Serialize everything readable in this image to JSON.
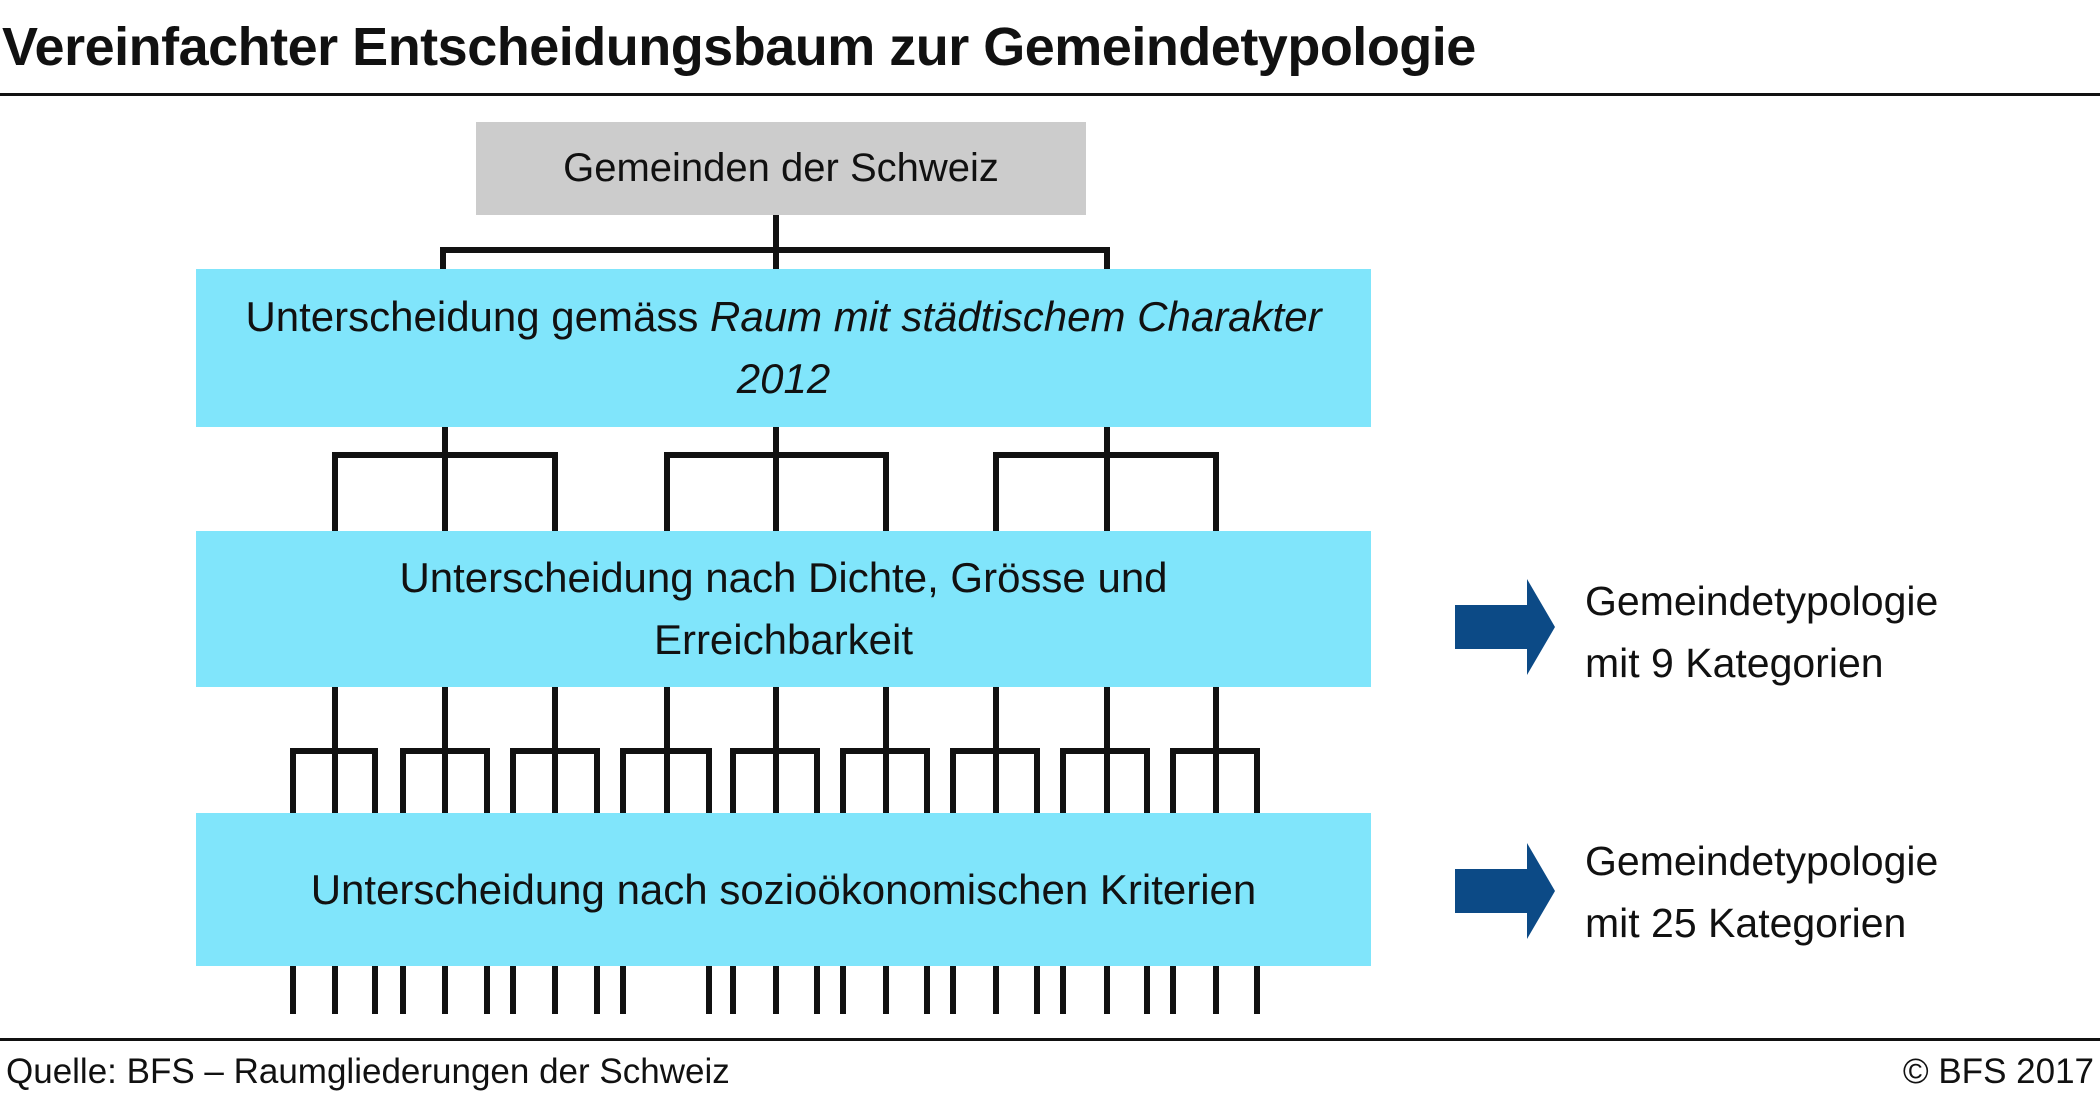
{
  "title": "Vereinfachter Entscheidungsbaum zur Gemeindetypologie",
  "root": "Gemeinden der Schweiz",
  "level1": {
    "text": "Unterscheidung gemäss ",
    "italic": "Raum mit städtischem Charakter 2012"
  },
  "level2": {
    "line1": "Unterscheidung nach Dichte, Grösse und",
    "line2": "Erreichbarkeit"
  },
  "level3": "Unterscheidung nach sozioökonomischen Kriterien",
  "result1": {
    "line1": "Gemeindetypologie",
    "line2": "mit 9 Kategorien"
  },
  "result2": {
    "line1": "Gemeindetypologie",
    "line2": "mit 25 Kategorien"
  },
  "source": "Quelle: BFS – Raumgliederungen der Schweiz",
  "copyright": "© BFS 2017",
  "colors": {
    "root_box": "#cccccc",
    "level_box": "#80e5fb",
    "arrow": "#0c4a86",
    "lines": "#111111"
  }
}
